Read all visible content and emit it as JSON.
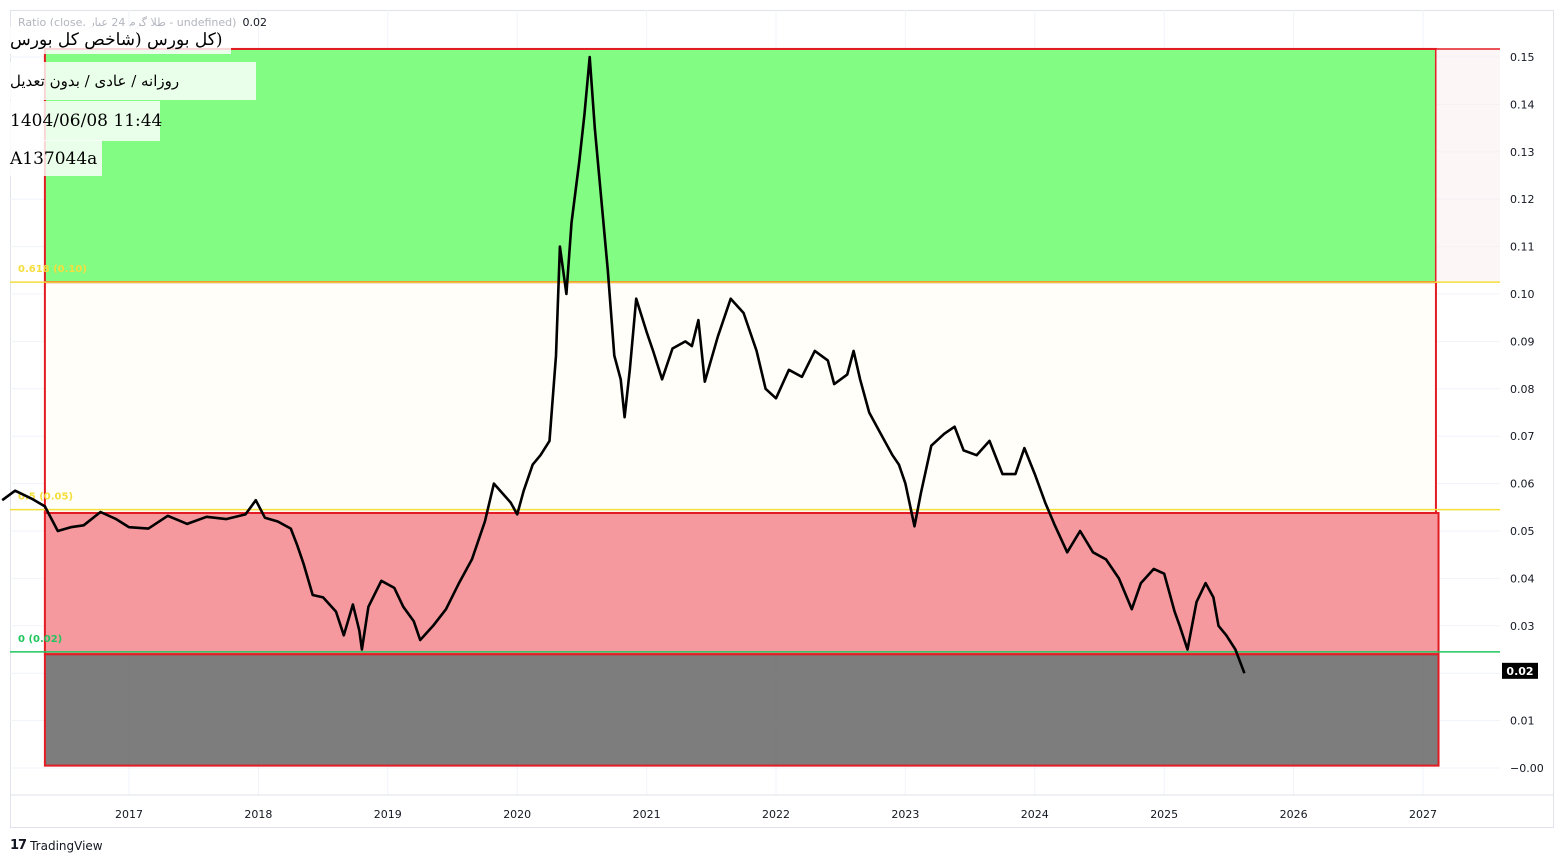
{
  "legend": {
    "text": "Ratio (close, طلا گرم 24 عیار - undefined)",
    "value": "0.02"
  },
  "info": {
    "title": "(کل بورس (شاخص کل بورس",
    "period": "روزانه / عادی / بدون تعدیل",
    "datetime": "1404/06/08 11:44",
    "code": "A137044a"
  },
  "brand": {
    "logo": "17",
    "name": "TradingView"
  },
  "colors": {
    "green_zone": "#7cfc7c",
    "red_zone": "#f4939a",
    "gray_zone": "#6f6f6f",
    "line": "#000000",
    "box_border": "#e31b23",
    "fib_618": "#f5dd3c",
    "fib_0": "#22c55e"
  },
  "chart_data": {
    "type": "line",
    "title": "",
    "xlabel": "",
    "ylabel": "",
    "ylim": [
      0.0,
      0.15
    ],
    "y_ticks": [
      "0.15",
      "0.14",
      "0.13",
      "0.12",
      "0.11",
      "0.10",
      "0.09",
      "0.08",
      "0.07",
      "0.06",
      "0.05",
      "0.04",
      "0.03",
      "0.02",
      "0.01",
      "0.00"
    ],
    "x_ticks": [
      "2017",
      "2018",
      "2019",
      "2020",
      "2021",
      "2022",
      "2023",
      "2024",
      "2025",
      "2026",
      "2027"
    ],
    "last_value_label": "0.02",
    "fib_levels": [
      {
        "label": "0.618 (0.10)",
        "value": 0.1025
      },
      {
        "label": "0.5 (0.05)",
        "value": 0.0545
      },
      {
        "label": "0 (0.02)",
        "value": 0.0245
      }
    ],
    "zones": [
      {
        "name": "upper",
        "y_from": 0.1025,
        "y_to": 0.1517,
        "x_from": 2016.35,
        "x_to": 2027.1
      },
      {
        "name": "middle",
        "y_from": 0.0538,
        "y_to": 0.1025,
        "x_from": 2016.35,
        "x_to": 2027.1
      },
      {
        "name": "lower",
        "y_from": 0.024,
        "y_to": 0.0538,
        "x_from": 2016.35,
        "x_to": 2027.12
      },
      {
        "name": "bottom",
        "y_from": 0.0005,
        "y_to": 0.024,
        "x_from": 2016.35,
        "x_to": 2027.12
      }
    ],
    "series": [
      {
        "points": [
          [
            2016.02,
            0.0565
          ],
          [
            2016.12,
            0.0585
          ],
          [
            2016.25,
            0.0568
          ],
          [
            2016.35,
            0.0552
          ],
          [
            2016.45,
            0.05
          ],
          [
            2016.55,
            0.0508
          ],
          [
            2016.65,
            0.0512
          ],
          [
            2016.78,
            0.054
          ],
          [
            2016.9,
            0.0525
          ],
          [
            2017.0,
            0.0508
          ],
          [
            2017.15,
            0.0505
          ],
          [
            2017.3,
            0.0532
          ],
          [
            2017.45,
            0.0515
          ],
          [
            2017.6,
            0.053
          ],
          [
            2017.75,
            0.0525
          ],
          [
            2017.9,
            0.0535
          ],
          [
            2017.98,
            0.0565
          ],
          [
            2018.05,
            0.0528
          ],
          [
            2018.15,
            0.052
          ],
          [
            2018.25,
            0.0505
          ],
          [
            2018.3,
            0.047
          ],
          [
            2018.35,
            0.043
          ],
          [
            2018.42,
            0.0365
          ],
          [
            2018.5,
            0.036
          ],
          [
            2018.6,
            0.033
          ],
          [
            2018.66,
            0.028
          ],
          [
            2018.73,
            0.0345
          ],
          [
            2018.78,
            0.029
          ],
          [
            2018.8,
            0.025
          ],
          [
            2018.85,
            0.034
          ],
          [
            2018.95,
            0.0395
          ],
          [
            2019.05,
            0.038
          ],
          [
            2019.12,
            0.034
          ],
          [
            2019.2,
            0.031
          ],
          [
            2019.25,
            0.027
          ],
          [
            2019.35,
            0.03
          ],
          [
            2019.45,
            0.0335
          ],
          [
            2019.55,
            0.039
          ],
          [
            2019.65,
            0.044
          ],
          [
            2019.75,
            0.052
          ],
          [
            2019.82,
            0.06
          ],
          [
            2019.9,
            0.0575
          ],
          [
            2019.95,
            0.056
          ],
          [
            2020.0,
            0.0535
          ],
          [
            2020.05,
            0.0585
          ],
          [
            2020.12,
            0.064
          ],
          [
            2020.18,
            0.066
          ],
          [
            2020.25,
            0.069
          ],
          [
            2020.3,
            0.087
          ],
          [
            2020.33,
            0.11
          ],
          [
            2020.38,
            0.1
          ],
          [
            2020.42,
            0.115
          ],
          [
            2020.48,
            0.128
          ],
          [
            2020.52,
            0.138
          ],
          [
            2020.56,
            0.15
          ],
          [
            2020.6,
            0.135
          ],
          [
            2020.65,
            0.12
          ],
          [
            2020.7,
            0.105
          ],
          [
            2020.75,
            0.087
          ],
          [
            2020.8,
            0.082
          ],
          [
            2020.83,
            0.074
          ],
          [
            2020.87,
            0.084
          ],
          [
            2020.92,
            0.099
          ],
          [
            2021.0,
            0.092
          ],
          [
            2021.05,
            0.088
          ],
          [
            2021.12,
            0.082
          ],
          [
            2021.2,
            0.0885
          ],
          [
            2021.3,
            0.09
          ],
          [
            2021.35,
            0.089
          ],
          [
            2021.4,
            0.0945
          ],
          [
            2021.45,
            0.0815
          ],
          [
            2021.55,
            0.091
          ],
          [
            2021.65,
            0.099
          ],
          [
            2021.75,
            0.096
          ],
          [
            2021.85,
            0.088
          ],
          [
            2021.92,
            0.08
          ],
          [
            2022.0,
            0.078
          ],
          [
            2022.1,
            0.084
          ],
          [
            2022.2,
            0.0825
          ],
          [
            2022.3,
            0.088
          ],
          [
            2022.4,
            0.086
          ],
          [
            2022.45,
            0.081
          ],
          [
            2022.55,
            0.083
          ],
          [
            2022.6,
            0.088
          ],
          [
            2022.65,
            0.082
          ],
          [
            2022.72,
            0.075
          ],
          [
            2022.8,
            0.071
          ],
          [
            2022.9,
            0.066
          ],
          [
            2022.95,
            0.064
          ],
          [
            2023.0,
            0.06
          ],
          [
            2023.07,
            0.051
          ],
          [
            2023.12,
            0.058
          ],
          [
            2023.2,
            0.068
          ],
          [
            2023.3,
            0.0705
          ],
          [
            2023.38,
            0.072
          ],
          [
            2023.45,
            0.067
          ],
          [
            2023.55,
            0.066
          ],
          [
            2023.65,
            0.069
          ],
          [
            2023.75,
            0.062
          ],
          [
            2023.85,
            0.062
          ],
          [
            2023.92,
            0.0675
          ],
          [
            2024.0,
            0.062
          ],
          [
            2024.08,
            0.056
          ],
          [
            2024.15,
            0.0515
          ],
          [
            2024.25,
            0.0455
          ],
          [
            2024.35,
            0.05
          ],
          [
            2024.45,
            0.0455
          ],
          [
            2024.55,
            0.044
          ],
          [
            2024.65,
            0.04
          ],
          [
            2024.75,
            0.0335
          ],
          [
            2024.82,
            0.039
          ],
          [
            2024.92,
            0.042
          ],
          [
            2025.0,
            0.041
          ],
          [
            2025.08,
            0.033
          ],
          [
            2025.12,
            0.03
          ],
          [
            2025.18,
            0.025
          ],
          [
            2025.25,
            0.035
          ],
          [
            2025.32,
            0.039
          ],
          [
            2025.38,
            0.036
          ],
          [
            2025.42,
            0.03
          ],
          [
            2025.48,
            0.028
          ],
          [
            2025.55,
            0.025
          ],
          [
            2025.62,
            0.02
          ]
        ]
      }
    ]
  }
}
